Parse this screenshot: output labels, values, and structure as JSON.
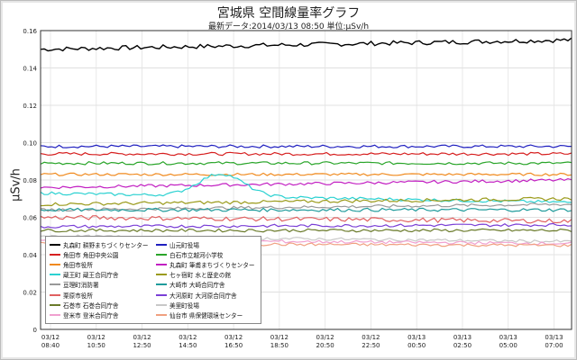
{
  "chart_data": {
    "type": "line",
    "title": "宮城県 空間線量率グラフ",
    "subtitle": "最新データ:2014/03/13 08:50 単位:μSv/h",
    "ylabel": "μSv/h",
    "xlabel": "",
    "ylim": [
      0,
      0.16
    ],
    "yticks": [
      "0",
      "0.02",
      "0.04",
      "0.06",
      "0.08",
      "0.10",
      "0.12",
      "0.14",
      "0.16"
    ],
    "grid": true,
    "legend_position": "bottom-left",
    "x_tick_labels": [
      {
        "date": "03/12",
        "time": "08:40"
      },
      {
        "date": "03/12",
        "time": "10:50"
      },
      {
        "date": "03/12",
        "time": "12:50"
      },
      {
        "date": "03/12",
        "time": "14:50"
      },
      {
        "date": "03/12",
        "time": "16:50"
      },
      {
        "date": "03/12",
        "time": "18:50"
      },
      {
        "date": "03/12",
        "time": "20:50"
      },
      {
        "date": "03/12",
        "time": "22:50"
      },
      {
        "date": "03/13",
        "time": "00:50"
      },
      {
        "date": "03/13",
        "time": "02:50"
      },
      {
        "date": "03/13",
        "time": "05:00"
      },
      {
        "date": "03/13",
        "time": "07:00"
      }
    ],
    "series": [
      {
        "name": "丸森町  耕野まちづくりセンター",
        "color": "#000000",
        "start": 0.15,
        "end": 0.155,
        "noise": 0.0012
      },
      {
        "name": "山元町役場",
        "color": "#1f1fbf",
        "start": 0.098,
        "end": 0.098,
        "noise": 0.0008
      },
      {
        "name": "角田市  角田中央公園",
        "color": "#d61f1f",
        "start": 0.094,
        "end": 0.094,
        "noise": 0.0008
      },
      {
        "name": "白石市立越河小学校",
        "color": "#2aa52a",
        "start": 0.089,
        "end": 0.089,
        "noise": 0.0008
      },
      {
        "name": "角田市役所",
        "color": "#f08a1e",
        "start": 0.083,
        "end": 0.083,
        "noise": 0.0007
      },
      {
        "name": "丸森町  筆甫まちづくりセンター",
        "color": "#c21fc2",
        "start": 0.076,
        "end": 0.08,
        "noise": 0.0008
      },
      {
        "name": "蔵王町  蔵王合同庁舎",
        "color": "#2bd1d1",
        "start": 0.073,
        "end": 0.068,
        "noise": 0.0008,
        "bump": {
          "center": 0.34,
          "width": 0.06,
          "height": 0.012
        }
      },
      {
        "name": "七ヶ宿町  水と歴史の館",
        "color": "#9a9a1a",
        "start": 0.067,
        "end": 0.07,
        "noise": 0.0009
      },
      {
        "name": "亘理町消防署",
        "color": "#999999",
        "start": 0.064,
        "end": 0.067,
        "noise": 0.0008
      },
      {
        "name": "大崎市  大崎合同庁舎",
        "color": "#1f9b9b",
        "start": 0.064,
        "end": 0.064,
        "noise": 0.0009
      },
      {
        "name": "栗原市役所",
        "color": "#e06060",
        "start": 0.06,
        "end": 0.058,
        "noise": 0.0012
      },
      {
        "name": "大河原町  大河原合同庁舎",
        "color": "#7a3fd6",
        "start": 0.055,
        "end": 0.056,
        "noise": 0.0008
      },
      {
        "name": "石巻市  石巻合同庁舎",
        "color": "#6a7a2a",
        "start": 0.053,
        "end": 0.053,
        "noise": 0.0008
      },
      {
        "name": "美里町役場",
        "color": "#c8c8c8",
        "start": 0.05,
        "end": 0.047,
        "noise": 0.0008
      },
      {
        "name": "登米市  登米合同庁舎",
        "color": "#f0a0d0",
        "start": 0.048,
        "end": 0.046,
        "noise": 0.0008
      },
      {
        "name": "仙台市  県保健環境センター",
        "color": "#f0a080",
        "start": 0.046,
        "end": 0.045,
        "noise": 0.0008
      }
    ]
  }
}
